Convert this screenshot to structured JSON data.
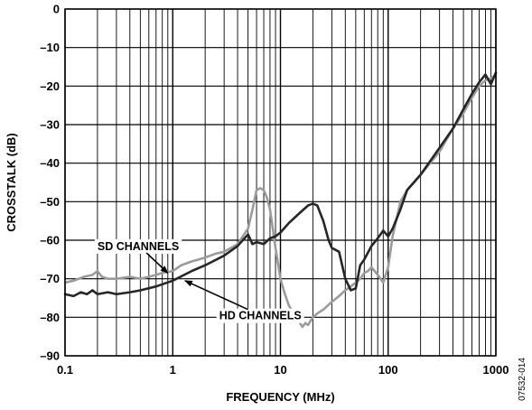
{
  "chart_data": {
    "type": "line",
    "title": "",
    "xlabel": "FREQUENCY (MHz)",
    "ylabel": "CROSSTALK (dB)",
    "x_scale": "log",
    "xlim": [
      0.1,
      1000
    ],
    "ylim": [
      -90,
      0
    ],
    "grid": true,
    "x_tick_labels": [
      "0.1",
      "1",
      "10",
      "100",
      "1000"
    ],
    "x_ticks": [
      0.1,
      1,
      10,
      100,
      1000
    ],
    "y_ticks": [
      0,
      -10,
      -20,
      -30,
      -40,
      -50,
      -60,
      -70,
      -80,
      -90
    ],
    "y_tick_labels": [
      "0",
      "–10",
      "–20",
      "–30",
      "–40",
      "–50",
      "–60",
      "–70",
      "–80",
      "–90"
    ],
    "figure_id": "07532-014",
    "colors": {
      "sd": "#9b9b9b",
      "hd": "#262626"
    },
    "annotations": [
      {
        "text": "SD CHANNELS",
        "target_x": 0.9,
        "target_y": -68.5,
        "text_x": 0.2,
        "text_y": -61.5
      },
      {
        "text": "HD CHANNELS",
        "target_x": 1.3,
        "target_y": -70.5,
        "text_x": 2.7,
        "text_y": -79.5
      }
    ],
    "series": [
      {
        "name": "SD CHANNELS",
        "x": [
          0.1,
          0.12,
          0.15,
          0.18,
          0.2,
          0.22,
          0.25,
          0.3,
          0.4,
          0.5,
          0.6,
          0.7,
          0.8,
          1,
          1.2,
          1.5,
          2,
          2.5,
          3,
          4,
          5,
          5.5,
          6,
          6.5,
          7,
          7.5,
          8,
          9,
          10,
          11,
          12,
          14,
          16,
          17,
          18,
          20,
          22,
          25,
          30,
          35,
          40,
          45,
          50,
          55,
          60,
          65,
          70,
          80,
          90,
          100,
          110,
          130,
          150,
          200,
          300,
          400,
          500,
          600,
          700,
          800,
          900,
          1000
        ],
        "y": [
          -71,
          -70.5,
          -69.5,
          -69,
          -68,
          -69.5,
          -70,
          -70,
          -69.5,
          -70,
          -69.5,
          -69,
          -68.5,
          -68,
          -66.5,
          -65.5,
          -64.5,
          -63.5,
          -63,
          -61,
          -57,
          -52,
          -47,
          -46.5,
          -47,
          -49,
          -52,
          -62,
          -70,
          -74,
          -77,
          -80,
          -82.5,
          -81.5,
          -82,
          -80,
          -79,
          -78,
          -76,
          -74.5,
          -73,
          -72,
          -71,
          -70,
          -68.5,
          -68,
          -67,
          -69,
          -71,
          -67,
          -59,
          -50,
          -47,
          -43,
          -37,
          -31,
          -27,
          -23,
          -20,
          -18.5,
          -18,
          -17
        ]
      },
      {
        "name": "HD CHANNELS",
        "x": [
          0.1,
          0.12,
          0.14,
          0.16,
          0.18,
          0.2,
          0.25,
          0.3,
          0.4,
          0.5,
          0.7,
          1,
          1.5,
          2,
          3,
          4,
          5,
          5.5,
          6,
          7,
          8,
          9,
          10,
          12,
          15,
          18,
          20,
          22,
          25,
          28,
          30,
          35,
          40,
          45,
          50,
          55,
          60,
          70,
          80,
          90,
          100,
          110,
          130,
          150,
          200,
          300,
          400,
          500,
          600,
          700,
          800,
          900,
          1000
        ],
        "y": [
          -74,
          -74.5,
          -73.5,
          -74,
          -73,
          -74,
          -73.5,
          -74,
          -73.5,
          -73,
          -72,
          -70.5,
          -68,
          -66.5,
          -64,
          -61.5,
          -58.5,
          -61,
          -60.5,
          -61,
          -59.5,
          -59,
          -58,
          -55.5,
          -53,
          -51,
          -50.5,
          -51,
          -55,
          -60,
          -62,
          -63,
          -70,
          -73,
          -72.5,
          -66.5,
          -65,
          -61.5,
          -59.5,
          -57.5,
          -59,
          -57,
          -52,
          -47,
          -43,
          -36,
          -31,
          -26,
          -22,
          -19,
          -17,
          -19.5,
          -16.5
        ]
      }
    ]
  }
}
